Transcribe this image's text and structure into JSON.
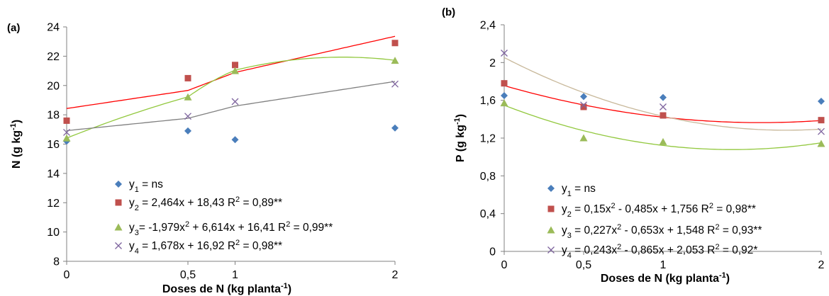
{
  "chart_data": [
    {
      "type": "scatter",
      "panel_label": "(a)",
      "xlabel": "Doses de N (kg planta-1)",
      "xlabel_parts": {
        "main": "Doses de N (kg planta",
        "sup": "-1",
        "end": ")"
      },
      "ylabel": "N (g kg-1)",
      "ylabel_parts": {
        "main": "N (g kg",
        "sup": "-1",
        "end": ")"
      },
      "ylim": [
        8,
        24
      ],
      "yticks": [
        8,
        10,
        12,
        14,
        16,
        18,
        20,
        22,
        24
      ],
      "ytick_labels": [
        "8",
        "10",
        "12",
        "14",
        "16",
        "18",
        "20",
        "22",
        "24"
      ],
      "xlim": [
        0,
        2
      ],
      "xticks": [
        0,
        0.5,
        1,
        2
      ],
      "xtick_labels": [
        "0",
        "0,5",
        "1",
        "2"
      ],
      "grid": false,
      "legend_position": "bottom-center",
      "series": [
        {
          "legend": "y1 = ns",
          "legend_parts": [
            [
              "y",
              ""
            ],
            [
              "1",
              "sub"
            ],
            [
              " = ns",
              ""
            ]
          ],
          "marker": "diamond",
          "color": "#4a7ebb",
          "x": [
            0,
            0.5,
            1,
            2
          ],
          "y": [
            16.2,
            16.9,
            16.3,
            17.1
          ],
          "fit": null
        },
        {
          "legend": "y2 = 2,464x + 18,43  R2 = 0,89**",
          "legend_parts": [
            [
              "y",
              ""
            ],
            [
              "2",
              "sub"
            ],
            [
              " = 2,464x + 18,43  R",
              ""
            ],
            [
              "2",
              "sup"
            ],
            [
              " = 0,89**",
              ""
            ]
          ],
          "marker": "square",
          "color": "#c0504d",
          "line_color": "#ff0000",
          "x": [
            0,
            0.5,
            1,
            2
          ],
          "y": [
            17.6,
            20.5,
            21.4,
            22.9
          ],
          "fit": [
            18.43,
            2.464,
            0
          ]
        },
        {
          "legend": "y3= -1,979x2 + 6,614x + 16,41  R2 = 0,99**",
          "legend_parts": [
            [
              "y",
              ""
            ],
            [
              "3",
              "sub"
            ],
            [
              "= -1,979x",
              ""
            ],
            [
              "2",
              "sup"
            ],
            [
              " + 6,614x + 16,41  R",
              ""
            ],
            [
              "2",
              "sup"
            ],
            [
              " = 0,99**",
              ""
            ]
          ],
          "marker": "triangle",
          "color": "#9bbb59",
          "line_color": "#92c83e",
          "x": [
            0,
            0.5,
            1,
            2
          ],
          "y": [
            16.4,
            19.2,
            21.0,
            21.7
          ],
          "fit": [
            16.41,
            6.614,
            -1.979
          ]
        },
        {
          "legend": "y4 = 1,678x + 16,92  R2 = 0,98**",
          "legend_parts": [
            [
              "y",
              ""
            ],
            [
              "4",
              "sub"
            ],
            [
              " = 1,678x + 16,92  R",
              ""
            ],
            [
              "2",
              "sup"
            ],
            [
              " = 0,98**",
              ""
            ]
          ],
          "marker": "x",
          "color": "#7e649e",
          "line_color": "#808080",
          "x": [
            0,
            0.5,
            1,
            2
          ],
          "y": [
            16.8,
            17.9,
            18.9,
            20.1
          ],
          "fit": [
            16.92,
            1.678,
            0
          ]
        }
      ]
    },
    {
      "type": "scatter",
      "panel_label": "(b)",
      "xlabel": "Doses de N (kg planta-1)",
      "xlabel_parts": {
        "main": "Doses de N (kg planta",
        "sup": "-1",
        "end": ")"
      },
      "ylabel": "P (g kg-1)",
      "ylabel_parts": {
        "main": "P (g kg",
        "sup": "-1",
        "end": ")"
      },
      "ylim": [
        0,
        2.4
      ],
      "yticks": [
        0,
        0.4,
        0.8,
        1.2,
        1.6,
        2,
        2.4
      ],
      "ytick_labels": [
        "0",
        "0,4",
        "0,8",
        "1,2",
        "1,6",
        "2",
        "2,4"
      ],
      "xlim": [
        0,
        2
      ],
      "xticks": [
        0,
        0.5,
        1,
        2
      ],
      "xtick_labels": [
        "0",
        "0,5",
        "1",
        "2"
      ],
      "grid": false,
      "legend_position": "bottom-center",
      "series": [
        {
          "legend": "y1 = ns",
          "legend_parts": [
            [
              "y",
              ""
            ],
            [
              "1",
              "sub"
            ],
            [
              " = ns",
              ""
            ]
          ],
          "marker": "diamond",
          "color": "#4a7ebb",
          "x": [
            0,
            0.5,
            1,
            2
          ],
          "y": [
            1.65,
            1.64,
            1.63,
            1.59
          ],
          "fit": null
        },
        {
          "legend": "y2 = 0,15x2 - 0,485x + 1,756  R2 = 0,98**",
          "legend_parts": [
            [
              "y",
              ""
            ],
            [
              "2",
              "sub"
            ],
            [
              " = 0,15x",
              ""
            ],
            [
              "2",
              "sup"
            ],
            [
              " - 0,485x + 1,756  R",
              ""
            ],
            [
              "2",
              "sup"
            ],
            [
              " = 0,98**",
              ""
            ]
          ],
          "marker": "square",
          "color": "#c0504d",
          "line_color": "#ff0000",
          "x": [
            0,
            0.5,
            1,
            2
          ],
          "y": [
            1.78,
            1.53,
            1.44,
            1.39
          ],
          "fit": [
            1.756,
            -0.485,
            0.15
          ]
        },
        {
          "legend": "y3 = 0,227x2 - 0,653x + 1,548  R2 = 0,93**",
          "legend_parts": [
            [
              "y",
              ""
            ],
            [
              "3",
              "sub"
            ],
            [
              " = 0,227x",
              ""
            ],
            [
              "2",
              "sup"
            ],
            [
              " - 0,653x + 1,548  R",
              ""
            ],
            [
              "2",
              "sup"
            ],
            [
              " = 0,93**",
              ""
            ]
          ],
          "marker": "triangle",
          "color": "#9bbb59",
          "line_color": "#92c83e",
          "x": [
            0,
            0.5,
            1,
            2
          ],
          "y": [
            1.57,
            1.2,
            1.16,
            1.14
          ],
          "fit": [
            1.548,
            -0.653,
            0.227
          ]
        },
        {
          "legend": "y4 = 0,243x2 - 0,865x + 2,053  R2 = 0,92*",
          "legend_parts": [
            [
              "y",
              ""
            ],
            [
              "4",
              "sub"
            ],
            [
              " = 0,243x",
              ""
            ],
            [
              "2",
              "sup"
            ],
            [
              " - 0,865x + 2,053  R",
              ""
            ],
            [
              "2",
              "sup"
            ],
            [
              " = 0,92*",
              ""
            ]
          ],
          "marker": "x",
          "color": "#7e649e",
          "line_color": "#c8b89a",
          "x": [
            0,
            0.5,
            1,
            2
          ],
          "y": [
            2.1,
            1.55,
            1.53,
            1.27
          ],
          "fit": [
            2.053,
            -0.865,
            0.243
          ]
        }
      ]
    }
  ]
}
